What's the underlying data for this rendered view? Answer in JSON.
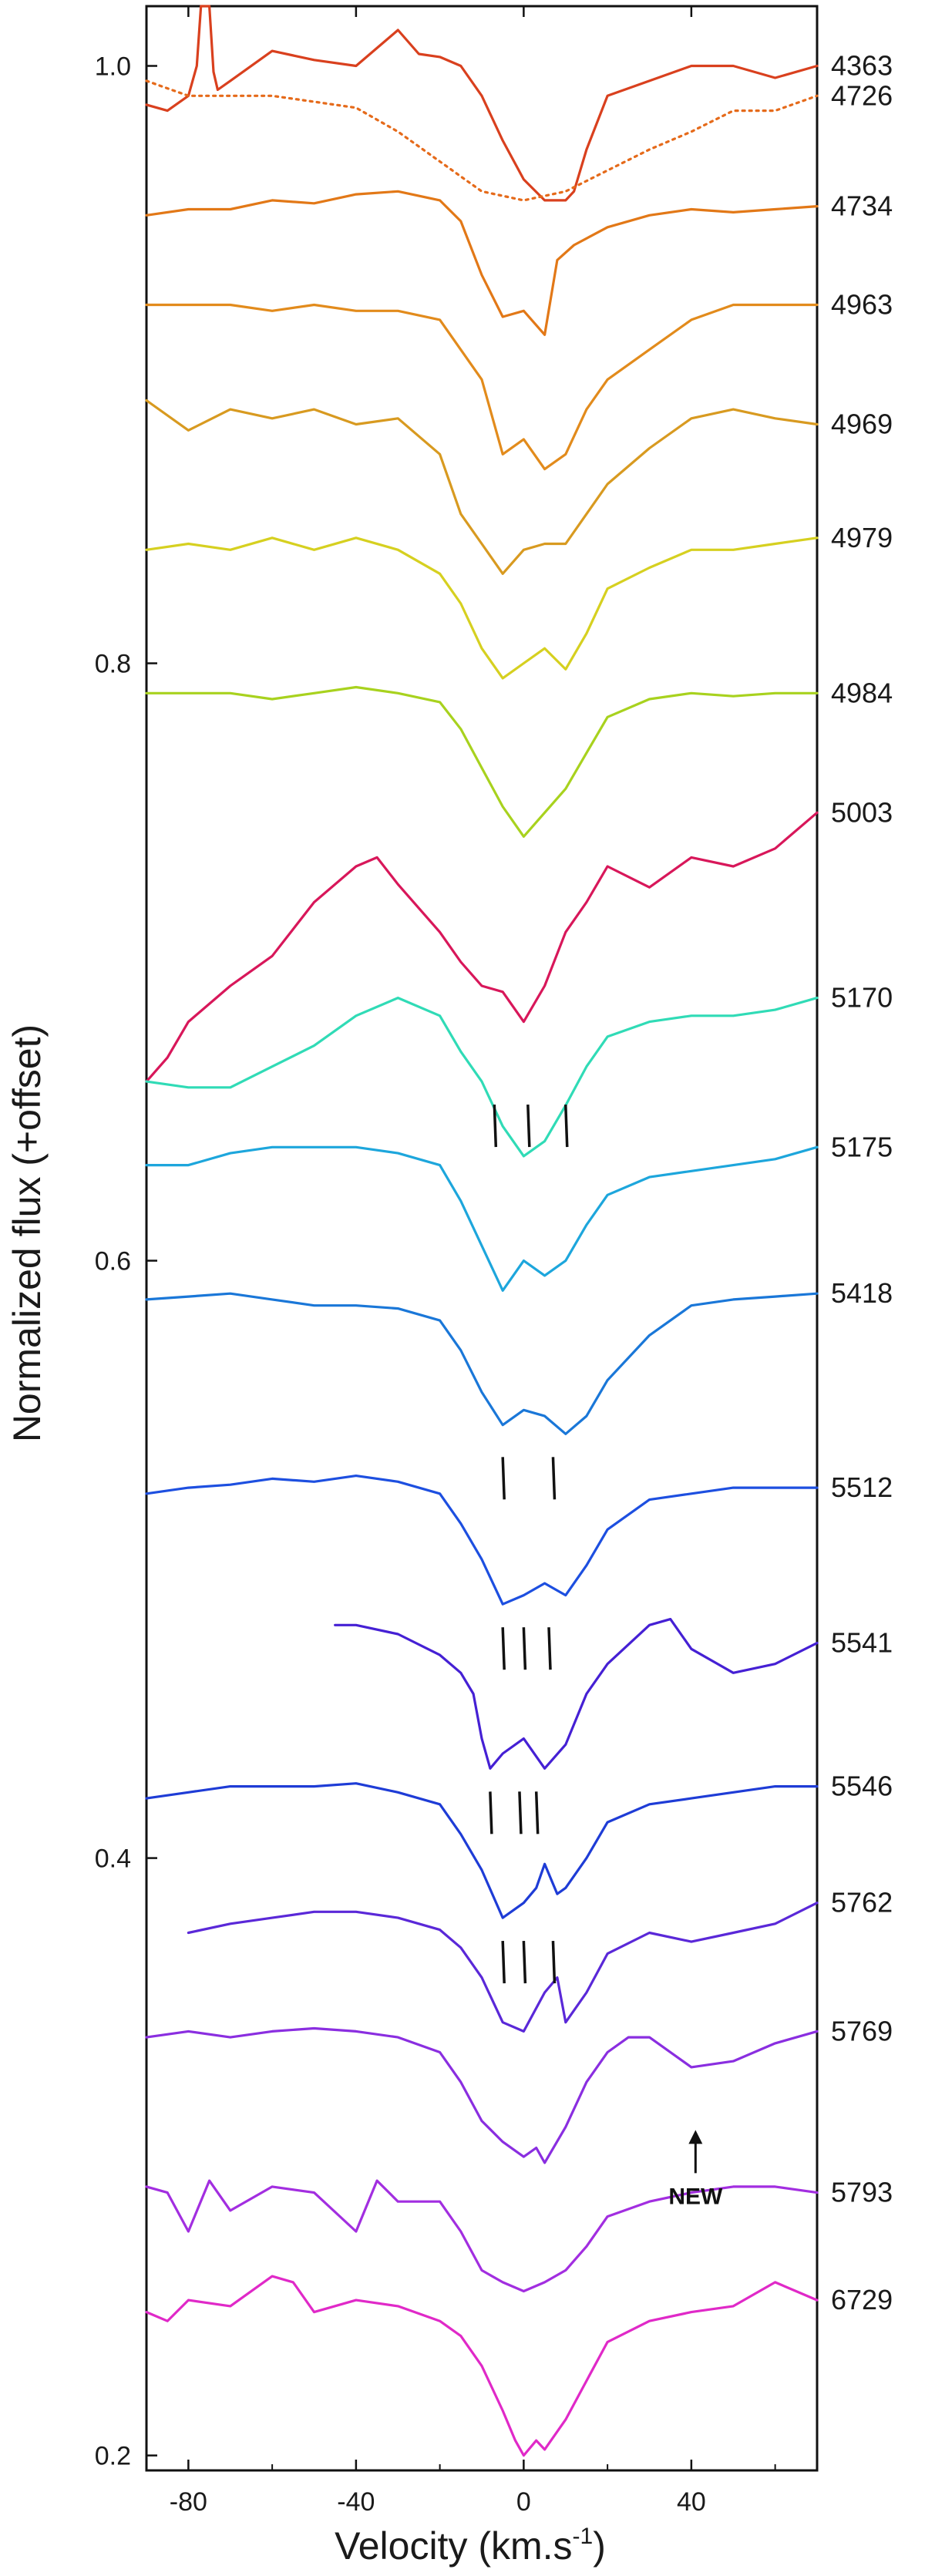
{
  "chart_data": {
    "type": "line",
    "xlabel": "Velocity (km.s",
    "xlabel_superscript": "-1",
    "xlabel_suffix": ")",
    "ylabel": "Normalized flux (+offset)",
    "xlim": [
      -90,
      70
    ],
    "ylim": [
      0.195,
      1.02
    ],
    "x_ticks": [
      -80,
      -40,
      0,
      40
    ],
    "y_ticks": [
      0.2,
      0.4,
      0.6,
      0.8,
      1.0
    ],
    "y_tick_labels": [
      "0.2",
      "0.4",
      "0.6",
      "0.8",
      "1.0"
    ],
    "grid": false,
    "legend": "none",
    "series": [
      {
        "name": "4363",
        "color": "#d9401e",
        "style": "solid",
        "x": [
          -90,
          -85,
          -80,
          -78,
          -77,
          -75,
          -74,
          -73,
          -70,
          -60,
          -50,
          -40,
          -30,
          -25,
          -20,
          -15,
          -10,
          -5,
          0,
          5,
          10,
          12,
          15,
          20,
          30,
          40,
          50,
          60,
          70
        ],
        "y": [
          0.987,
          0.985,
          0.99,
          1.0,
          1.02,
          1.02,
          0.998,
          0.992,
          0.995,
          1.005,
          1.002,
          1.0,
          1.012,
          1.004,
          1.003,
          1.0,
          0.99,
          0.975,
          0.962,
          0.955,
          0.955,
          0.958,
          0.972,
          0.99,
          0.995,
          1.0,
          1.0,
          0.996,
          1.0
        ]
      },
      {
        "name": "4726",
        "color": "#e56a1a",
        "style": "dotted",
        "x": [
          -90,
          -80,
          -70,
          -60,
          -50,
          -40,
          -30,
          -20,
          -10,
          0,
          10,
          20,
          30,
          40,
          50,
          60,
          70
        ],
        "y": [
          0.995,
          0.99,
          0.99,
          0.99,
          0.988,
          0.986,
          0.978,
          0.968,
          0.958,
          0.955,
          0.958,
          0.965,
          0.972,
          0.978,
          0.985,
          0.985,
          0.99
        ]
      },
      {
        "name": "4734",
        "color": "#e27817",
        "style": "solid",
        "x": [
          -90,
          -80,
          -70,
          -60,
          -50,
          -40,
          -30,
          -20,
          -15,
          -10,
          -5,
          0,
          5,
          8,
          12,
          20,
          30,
          40,
          50,
          60,
          70
        ],
        "y": [
          0.95,
          0.952,
          0.952,
          0.955,
          0.954,
          0.957,
          0.958,
          0.955,
          0.948,
          0.93,
          0.916,
          0.918,
          0.91,
          0.935,
          0.94,
          0.946,
          0.95,
          0.952,
          0.951,
          0.952,
          0.953
        ]
      },
      {
        "name": "4963",
        "color": "#e28b1c",
        "style": "solid",
        "x": [
          -90,
          -80,
          -70,
          -60,
          -50,
          -40,
          -30,
          -20,
          -10,
          -5,
          0,
          5,
          10,
          15,
          20,
          30,
          40,
          50,
          60,
          70
        ],
        "y": [
          0.92,
          0.92,
          0.92,
          0.918,
          0.92,
          0.918,
          0.918,
          0.915,
          0.895,
          0.87,
          0.875,
          0.865,
          0.87,
          0.885,
          0.895,
          0.905,
          0.915,
          0.92,
          0.92,
          0.92
        ]
      },
      {
        "name": "4969",
        "color": "#d89a20",
        "style": "solid",
        "x": [
          -90,
          -80,
          -70,
          -60,
          -50,
          -40,
          -30,
          -20,
          -15,
          -10,
          -5,
          0,
          5,
          10,
          15,
          20,
          30,
          40,
          50,
          60,
          70
        ],
        "y": [
          0.888,
          0.878,
          0.885,
          0.882,
          0.885,
          0.88,
          0.882,
          0.87,
          0.85,
          0.84,
          0.83,
          0.838,
          0.84,
          0.84,
          0.85,
          0.86,
          0.872,
          0.882,
          0.885,
          0.882,
          0.88
        ]
      },
      {
        "name": "4979",
        "color": "#d6d020",
        "style": "solid",
        "x": [
          -90,
          -80,
          -70,
          -60,
          -50,
          -40,
          -30,
          -20,
          -15,
          -10,
          -5,
          0,
          5,
          10,
          15,
          20,
          30,
          40,
          50,
          60,
          70
        ],
        "y": [
          0.838,
          0.84,
          0.838,
          0.842,
          0.838,
          0.842,
          0.838,
          0.83,
          0.82,
          0.805,
          0.795,
          0.8,
          0.805,
          0.798,
          0.81,
          0.825,
          0.832,
          0.838,
          0.838,
          0.84,
          0.842
        ]
      },
      {
        "name": "4984",
        "color": "#a8d21e",
        "style": "solid",
        "x": [
          -90,
          -80,
          -70,
          -60,
          -50,
          -40,
          -30,
          -20,
          -15,
          -10,
          -5,
          0,
          5,
          10,
          15,
          20,
          30,
          40,
          50,
          60,
          70
        ],
        "y": [
          0.79,
          0.79,
          0.79,
          0.788,
          0.79,
          0.792,
          0.79,
          0.787,
          0.778,
          0.765,
          0.752,
          0.742,
          0.75,
          0.758,
          0.77,
          0.782,
          0.788,
          0.79,
          0.789,
          0.79,
          0.79
        ]
      },
      {
        "name": "5003",
        "color": "#d8175a",
        "style": "solid",
        "x": [
          -90,
          -85,
          -80,
          -70,
          -60,
          -50,
          -40,
          -35,
          -30,
          -20,
          -15,
          -10,
          -5,
          0,
          5,
          10,
          15,
          20,
          30,
          40,
          50,
          60,
          70
        ],
        "y": [
          0.66,
          0.668,
          0.68,
          0.692,
          0.702,
          0.72,
          0.732,
          0.735,
          0.726,
          0.71,
          0.7,
          0.692,
          0.69,
          0.68,
          0.692,
          0.71,
          0.72,
          0.732,
          0.725,
          0.735,
          0.732,
          0.738,
          0.75
        ]
      },
      {
        "name": "5170",
        "color": "#30dbb6",
        "style": "solid",
        "x": [
          -90,
          -80,
          -70,
          -60,
          -50,
          -40,
          -30,
          -20,
          -15,
          -10,
          -5,
          0,
          5,
          10,
          15,
          20,
          30,
          40,
          50,
          60,
          70
        ],
        "y": [
          0.66,
          0.658,
          0.658,
          0.665,
          0.672,
          0.682,
          0.688,
          0.682,
          0.67,
          0.66,
          0.645,
          0.635,
          0.64,
          0.652,
          0.665,
          0.675,
          0.68,
          0.682,
          0.682,
          0.684,
          0.688
        ]
      },
      {
        "name": "5175",
        "color": "#1da6dc",
        "style": "solid",
        "x": [
          -90,
          -80,
          -70,
          -60,
          -50,
          -40,
          -30,
          -20,
          -15,
          -10,
          -5,
          0,
          5,
          10,
          15,
          20,
          30,
          40,
          50,
          60,
          70
        ],
        "y": [
          0.632,
          0.632,
          0.636,
          0.638,
          0.638,
          0.638,
          0.636,
          0.632,
          0.62,
          0.605,
          0.59,
          0.6,
          0.595,
          0.6,
          0.612,
          0.622,
          0.628,
          0.63,
          0.632,
          0.634,
          0.638
        ]
      },
      {
        "name": "5418",
        "color": "#1a77d8",
        "style": "solid",
        "x": [
          -90,
          -80,
          -70,
          -60,
          -50,
          -40,
          -30,
          -20,
          -15,
          -10,
          -5,
          0,
          5,
          10,
          15,
          20,
          30,
          40,
          50,
          60,
          70
        ],
        "y": [
          0.587,
          0.588,
          0.589,
          0.587,
          0.585,
          0.585,
          0.584,
          0.58,
          0.57,
          0.556,
          0.545,
          0.55,
          0.548,
          0.542,
          0.548,
          0.56,
          0.575,
          0.585,
          0.587,
          0.588,
          0.589
        ]
      },
      {
        "name": "5512",
        "color": "#1d4fe0",
        "style": "solid",
        "x": [
          -90,
          -80,
          -70,
          -60,
          -50,
          -40,
          -30,
          -20,
          -15,
          -10,
          -5,
          0,
          5,
          10,
          15,
          20,
          30,
          40,
          50,
          60,
          70
        ],
        "y": [
          0.522,
          0.524,
          0.525,
          0.527,
          0.526,
          0.528,
          0.526,
          0.522,
          0.512,
          0.5,
          0.485,
          0.488,
          0.492,
          0.488,
          0.498,
          0.51,
          0.52,
          0.522,
          0.524,
          0.524,
          0.524
        ]
      },
      {
        "name": "5541",
        "color": "#4520d4",
        "style": "solid",
        "x": [
          -45,
          -40,
          -30,
          -20,
          -15,
          -12,
          -10,
          -8,
          -5,
          0,
          5,
          10,
          15,
          20,
          30,
          35,
          40,
          50,
          60,
          70
        ],
        "y": [
          0.478,
          0.478,
          0.475,
          0.468,
          0.462,
          0.455,
          0.44,
          0.43,
          0.435,
          0.44,
          0.43,
          0.438,
          0.455,
          0.465,
          0.478,
          0.48,
          0.47,
          0.462,
          0.465,
          0.472
        ]
      },
      {
        "name": "5546",
        "color": "#1e3cd6",
        "style": "solid",
        "x": [
          -90,
          -80,
          -70,
          -60,
          -50,
          -40,
          -30,
          -20,
          -15,
          -10,
          -5,
          0,
          3,
          5,
          8,
          10,
          15,
          20,
          30,
          40,
          50,
          60,
          70
        ],
        "y": [
          0.42,
          0.422,
          0.424,
          0.424,
          0.424,
          0.425,
          0.422,
          0.418,
          0.408,
          0.396,
          0.38,
          0.385,
          0.39,
          0.398,
          0.388,
          0.39,
          0.4,
          0.412,
          0.418,
          0.42,
          0.422,
          0.424,
          0.424
        ]
      },
      {
        "name": "5762",
        "color": "#5a28d8",
        "style": "solid",
        "x": [
          -80,
          -70,
          -60,
          -50,
          -40,
          -30,
          -20,
          -15,
          -10,
          -5,
          0,
          5,
          8,
          10,
          15,
          20,
          30,
          40,
          50,
          60,
          70
        ],
        "y": [
          0.375,
          0.378,
          0.38,
          0.382,
          0.382,
          0.38,
          0.376,
          0.37,
          0.36,
          0.345,
          0.342,
          0.355,
          0.36,
          0.345,
          0.355,
          0.368,
          0.375,
          0.372,
          0.375,
          0.378,
          0.385
        ]
      },
      {
        "name": "5769",
        "color": "#8a2ee0",
        "style": "solid",
        "x": [
          -90,
          -80,
          -70,
          -60,
          -50,
          -40,
          -30,
          -20,
          -15,
          -10,
          -5,
          0,
          3,
          5,
          10,
          15,
          20,
          25,
          30,
          40,
          50,
          60,
          70
        ],
        "y": [
          0.34,
          0.342,
          0.34,
          0.342,
          0.343,
          0.342,
          0.34,
          0.335,
          0.325,
          0.312,
          0.305,
          0.3,
          0.303,
          0.298,
          0.31,
          0.325,
          0.335,
          0.34,
          0.34,
          0.33,
          0.332,
          0.338,
          0.342
        ]
      },
      {
        "name": "5793",
        "color": "#a22ee0",
        "style": "solid",
        "x": [
          -90,
          -85,
          -80,
          -75,
          -70,
          -60,
          -50,
          -40,
          -35,
          -30,
          -20,
          -15,
          -10,
          -5,
          0,
          5,
          10,
          15,
          20,
          30,
          40,
          50,
          60,
          70
        ],
        "y": [
          0.29,
          0.288,
          0.275,
          0.292,
          0.282,
          0.29,
          0.288,
          0.275,
          0.292,
          0.285,
          0.285,
          0.275,
          0.262,
          0.258,
          0.255,
          0.258,
          0.262,
          0.27,
          0.28,
          0.285,
          0.288,
          0.29,
          0.29,
          0.288
        ]
      },
      {
        "name": "6729",
        "color": "#e029c8",
        "style": "solid",
        "x": [
          -90,
          -85,
          -80,
          -70,
          -60,
          -55,
          -50,
          -40,
          -30,
          -20,
          -15,
          -10,
          -5,
          -2,
          0,
          3,
          5,
          10,
          15,
          20,
          30,
          40,
          50,
          60,
          70
        ],
        "y": [
          0.248,
          0.245,
          0.252,
          0.25,
          0.26,
          0.258,
          0.248,
          0.252,
          0.25,
          0.245,
          0.24,
          0.23,
          0.215,
          0.205,
          0.2,
          0.205,
          0.202,
          0.212,
          0.225,
          0.238,
          0.245,
          0.248,
          0.25,
          0.258,
          0.252
        ]
      }
    ],
    "component_markers": [
      {
        "series": "5003",
        "positions": [
          -7,
          1,
          10
        ]
      },
      {
        "series": "5418",
        "positions": [
          -5,
          7
        ]
      },
      {
        "series": "5512",
        "positions": [
          -5,
          0,
          6
        ]
      },
      {
        "series": "5541",
        "positions": [
          -8,
          -1,
          3
        ]
      },
      {
        "series": "5546",
        "positions": [
          -5,
          0,
          7
        ]
      }
    ],
    "annotations": [
      {
        "text": "NEW",
        "x": 41,
        "y": 0.31
      }
    ]
  }
}
